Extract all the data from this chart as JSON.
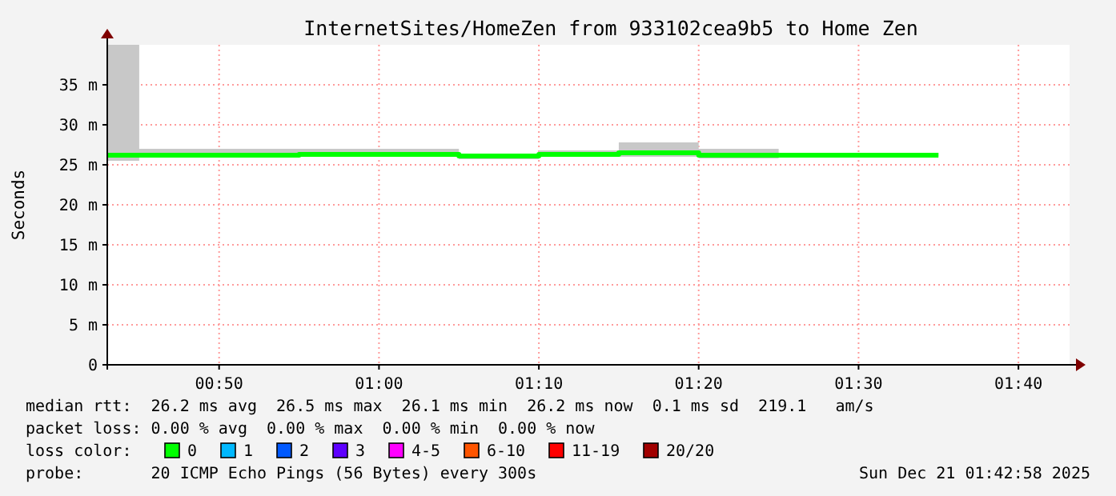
{
  "chart_data": {
    "type": "step",
    "title": "InternetSites/HomeZen from 933102cea9b5 to Home Zen",
    "ylabel": "Seconds",
    "legend_title": "loss color:",
    "legend": "bottom",
    "grid": true,
    "xlim": [
      0.7167,
      1.72
    ],
    "xticks": [
      {
        "value": 0.8333,
        "label": "00:50"
      },
      {
        "value": 1,
        "label": "01:00"
      },
      {
        "value": 1.1667,
        "label": "01:10"
      },
      {
        "value": 1.3333,
        "label": "01:20"
      },
      {
        "value": 1.5,
        "label": "01:30"
      },
      {
        "value": 1.6667,
        "label": "01:40"
      }
    ],
    "ylim": [
      0,
      40
    ],
    "yticks": [
      0,
      {
        "value": 5,
        "label": "5 m"
      },
      {
        "value": 10,
        "label": "10 m"
      },
      {
        "value": 15,
        "label": "15 m"
      },
      {
        "value": 20,
        "label": "20 m"
      },
      {
        "value": 25,
        "label": "25 m"
      },
      {
        "value": 30,
        "label": "30 m"
      },
      {
        "value": 35,
        "label": "35 m"
      }
    ],
    "series": [
      {
        "name": "0",
        "color": "#00ff00",
        "x": [
          0.7167,
          0.75,
          0.9167,
          1.0833,
          1.1667,
          1.25,
          1.3333,
          1.4167,
          1.5833
        ],
        "values": [
          26.2,
          26.2,
          26.3,
          26.1,
          26.3,
          26.5,
          26.2,
          26.2,
          26.2
        ],
        "lower": [
          25.5,
          26,
          26,
          25.7,
          26,
          26,
          25.8,
          26.1,
          26.1
        ],
        "upper": [
          40,
          27,
          27,
          26.2,
          26.8,
          27.8,
          27,
          26.5,
          26.5
        ]
      },
      {
        "name": "1",
        "color": "#00b8ff",
        "values": [
          null
        ]
      },
      {
        "name": "2",
        "color": "#0059ff",
        "values": [
          null
        ]
      },
      {
        "name": "3",
        "color": "#5e00ff",
        "values": [
          null
        ]
      },
      {
        "name": "4-5",
        "color": "#ff00ff",
        "values": [
          null
        ]
      },
      {
        "name": "6-10",
        "color": "#ff5500",
        "values": [
          null
        ]
      },
      {
        "name": "11-19",
        "color": "#ff0000",
        "values": [
          null
        ]
      },
      {
        "name": "20/20",
        "color": "#a10000",
        "values": [
          null
        ]
      }
    ],
    "annotations": [
      "median rtt:  26.2 ms avg  26.5 ms max  26.1 ms min  26.2 ms now  0.1 ms sd  219.1   am/s",
      "packet loss: 0.00 % avg  0.00 % max  0.00 % min  0.00 % now",
      "probe:       20 ICMP Echo Pings (56 Bytes) every 300s",
      "Sun Dec 21 01:42:58 2025"
    ]
  }
}
